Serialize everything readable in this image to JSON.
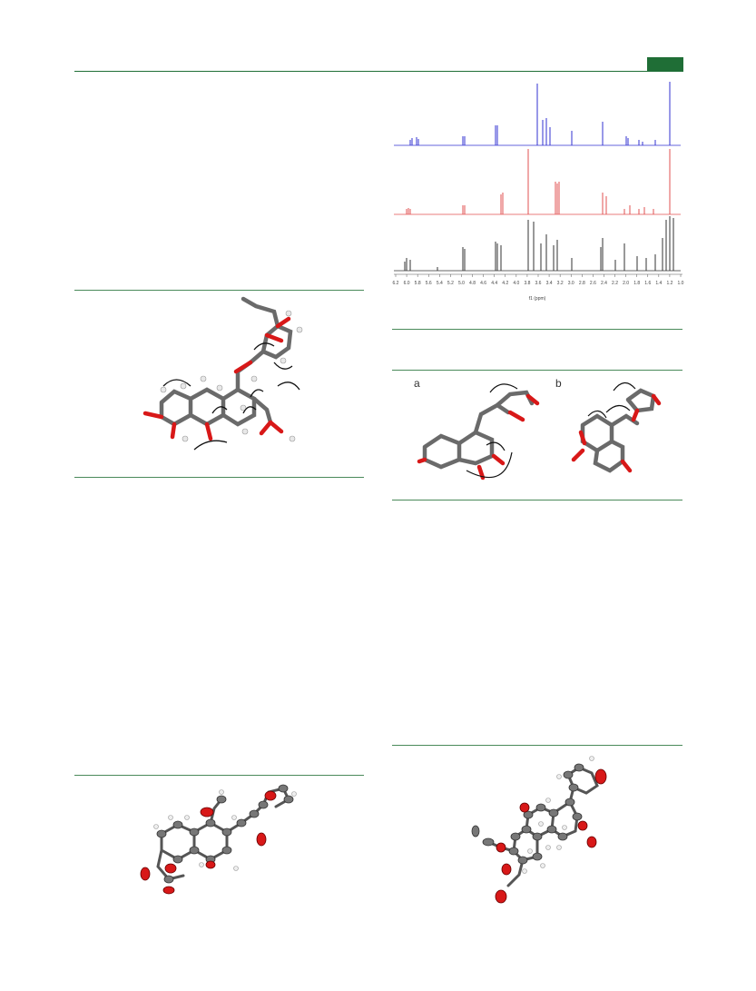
{
  "header": {
    "accent_color": "#1f6e36"
  },
  "nmr_figure": {
    "axis_ticks": [
      "6.2",
      "6.0",
      "5.8",
      "5.6",
      "5.4",
      "5.2",
      "5.0",
      "4.8",
      "4.6",
      "4.4",
      "4.2",
      "4.0",
      "3.8",
      "3.6",
      "3.4",
      "3.2",
      "3.0",
      "2.8",
      "2.6",
      "2.4",
      "2.2",
      "2.0",
      "1.8",
      "1.6",
      "1.4",
      "1.2",
      "1.0"
    ],
    "axis_label": "f1 (ppm)",
    "trace_colors": [
      "#3030d0",
      "#e05050",
      "#333333"
    ]
  },
  "conformer_figure": {
    "labels": [
      "a",
      "b"
    ]
  },
  "atom_colors": {
    "carbon": "#6a6a6a",
    "oxygen": "#d81818",
    "hydrogen": "#e8e8e8"
  }
}
